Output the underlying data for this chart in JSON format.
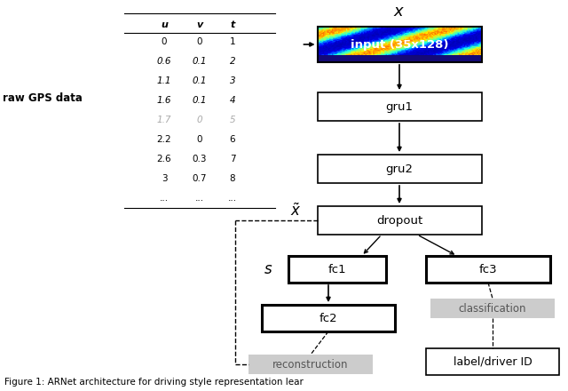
{
  "title": "Figure 1: ARNet architecture for driving style representation lear",
  "table_headers": [
    "u",
    "v",
    "t"
  ],
  "table_data": [
    [
      "0",
      "0",
      "1"
    ],
    [
      "0.6",
      "0.1",
      "2"
    ],
    [
      "1.1",
      "0.1",
      "3"
    ],
    [
      "1.6",
      "0.1",
      "4"
    ],
    [
      "1.7",
      "0",
      "5"
    ],
    [
      "2.2",
      "0",
      "6"
    ],
    [
      "2.6",
      "0.3",
      "7"
    ],
    [
      "3",
      "0.7",
      "8"
    ],
    [
      "...",
      "...",
      "..."
    ]
  ],
  "raw_gps_label": "raw GPS data",
  "bg_color": "#ffffff",
  "input_text": "input (35x128)",
  "reconstruction_text": "reconstruction",
  "classification_text": "classification",
  "label_driver_text": "label/driver ID",
  "caption": "Figure 1: ARNet architecture for driving style representation lear"
}
